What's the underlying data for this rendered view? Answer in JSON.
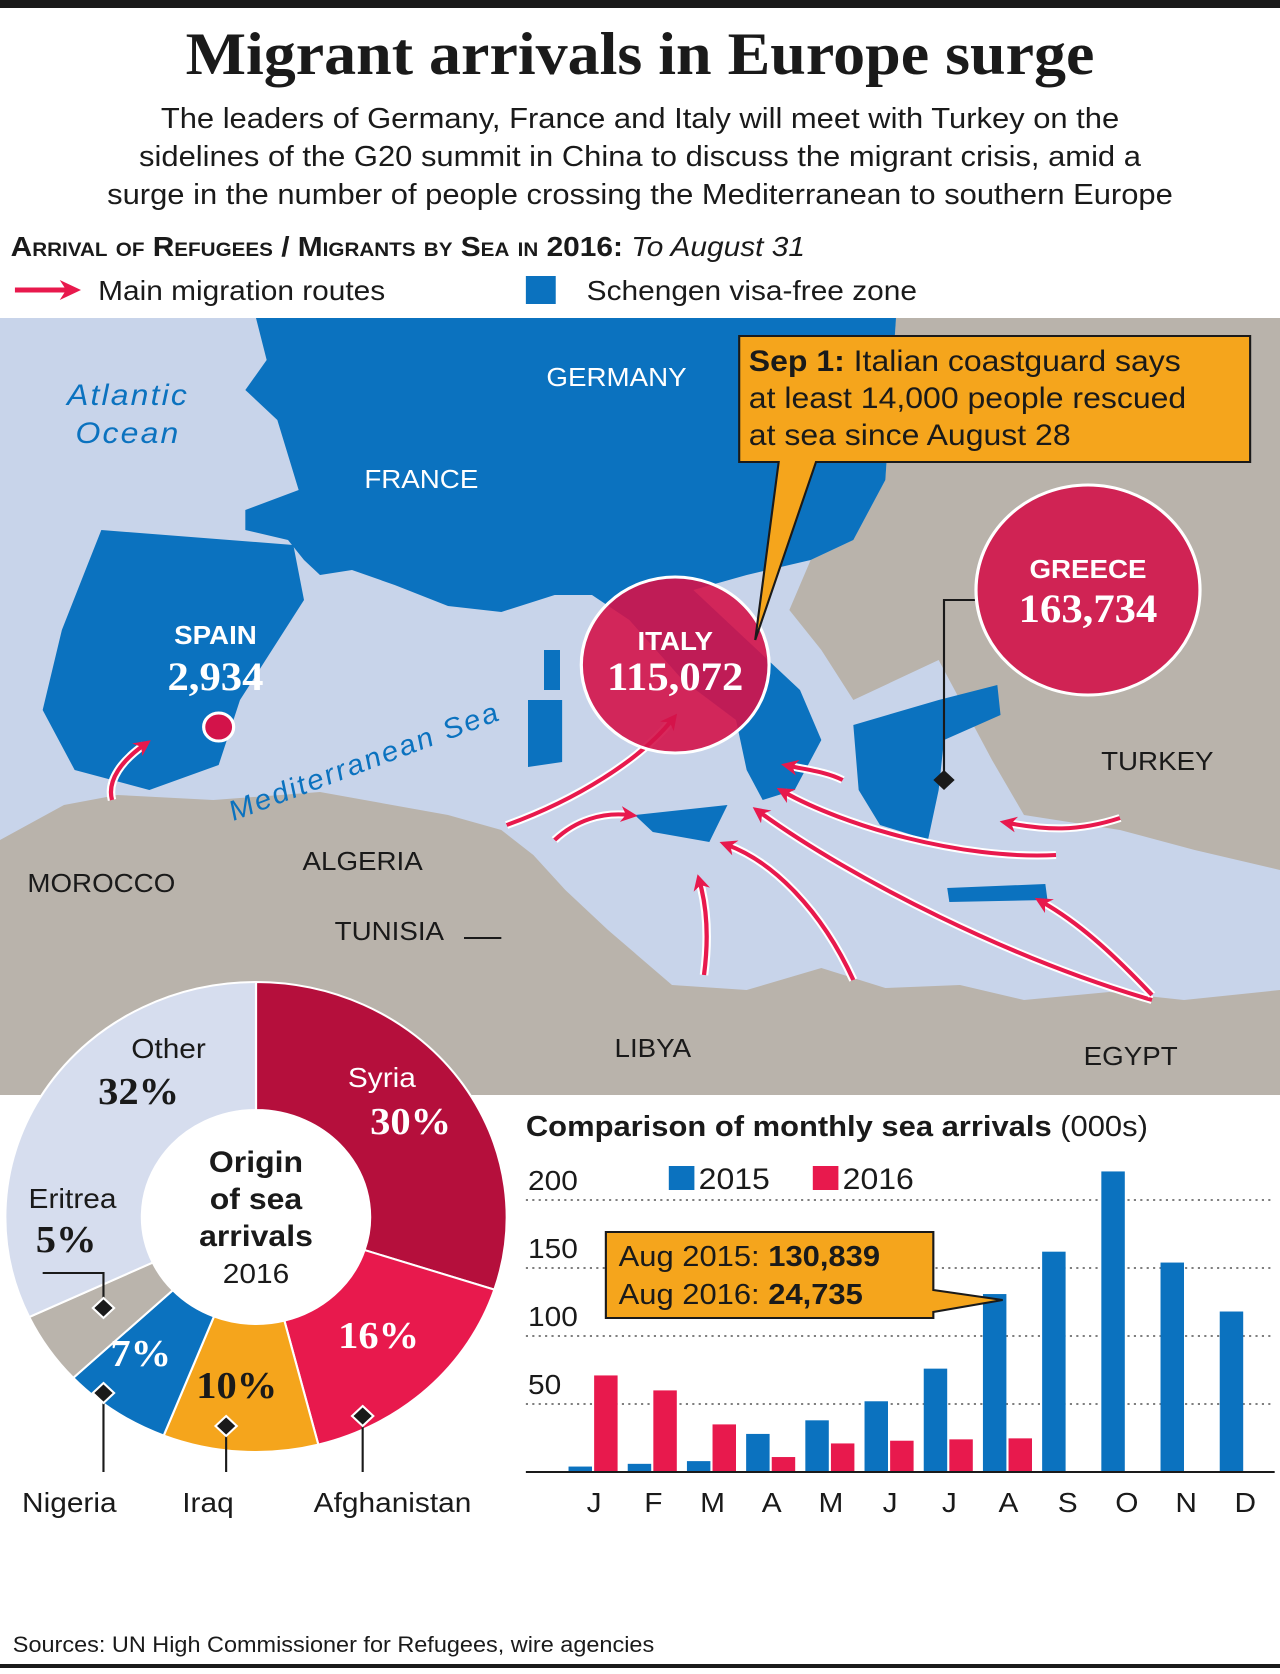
{
  "header": {
    "title": "Migrant arrivals in Europe surge",
    "subtitle_lines": [
      "The leaders of Germany, France and Italy will meet with Turkey on the",
      "sidelines of the G20 summit in China to discuss the migrant crisis, amid a",
      "surge in the number of people crossing the Mediterranean to southern Europe"
    ]
  },
  "map": {
    "heading": "Arrival of Refugees / Migrants by Sea in 2016:",
    "date": "To August 31",
    "legend": [
      "Main migration routes",
      "Schengen visa-free zone"
    ],
    "labels": [
      "Atlantic",
      "Ocean",
      "GERMANY",
      "FRANCE",
      "Mediterranean Sea",
      "TURKEY",
      "MOROCCO",
      "ALGERIA",
      "TUNISIA",
      "LIBYA",
      "EGYPT"
    ],
    "arrivals": [
      {
        "country": "SPAIN",
        "value": 2934,
        "label": "2,934"
      },
      {
        "country": "ITALY",
        "value": 115072,
        "label": "115,072"
      },
      {
        "country": "GREECE",
        "value": 163734,
        "label": "163,734"
      }
    ],
    "callout": {
      "date": "Sep 1:",
      "lines": [
        "Italian coastguard says",
        "at least 14,000 people rescued",
        "at sea since August 28"
      ]
    }
  },
  "chart_data": [
    {
      "type": "pie",
      "title": [
        "Origin",
        "of sea",
        "arrivals"
      ],
      "subtitle": "2016",
      "categories": [
        "Syria",
        "Afghanistan",
        "Iraq",
        "Nigeria",
        "Eritrea",
        "Other"
      ],
      "values": [
        30,
        16,
        10,
        7,
        5,
        32
      ],
      "value_labels": [
        "30%",
        "16%",
        "10%",
        "7%",
        "5%",
        "32%"
      ],
      "colors": [
        "#b50f3c",
        "#e8194d",
        "#f5a51c",
        "#0b72bf",
        "#bab4ac",
        "#d6ddee"
      ]
    },
    {
      "type": "bar",
      "title": "Comparison of monthly sea arrivals",
      "unit": "(000s)",
      "categories": [
        "J",
        "F",
        "M",
        "A",
        "M",
        "J",
        "J",
        "A",
        "S",
        "O",
        "N",
        "D"
      ],
      "series": [
        {
          "name": "2015",
          "color": "#0b72bf",
          "values": [
            4,
            6,
            8,
            28,
            38,
            52,
            76,
            130.839,
            162,
            221,
            154,
            118
          ]
        },
        {
          "name": "2016",
          "color": "#e8194d",
          "values": [
            71,
            60,
            35,
            11,
            21,
            23,
            24,
            24.735,
            null,
            null,
            null,
            null
          ]
        }
      ],
      "ylim": [
        0,
        225
      ],
      "yticks": [
        50,
        100,
        150,
        200
      ],
      "grid": true,
      "annotation": [
        {
          "label": "Aug 2015:",
          "value": "130,839"
        },
        {
          "label": "Aug 2016:",
          "value": "24,735"
        }
      ]
    }
  ],
  "sources": "Sources: UN High Commissioner for Refugees, wire agencies"
}
